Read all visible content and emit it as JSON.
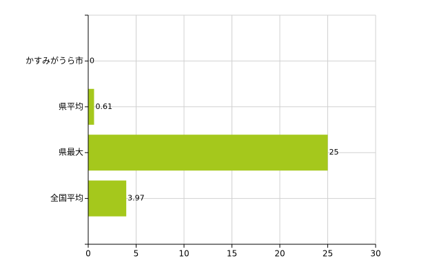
{
  "chart_data": {
    "type": "hbar",
    "categories": [
      "かすみがうら市",
      "県平均",
      "県最大",
      "全国平均"
    ],
    "values": [
      0,
      0.61,
      25,
      3.97
    ],
    "color": "#a5c81c",
    "xlim": [
      0,
      30
    ],
    "xticks": [
      0,
      5,
      10,
      15,
      20,
      25,
      30
    ],
    "grid": true,
    "data_labels": true
  }
}
